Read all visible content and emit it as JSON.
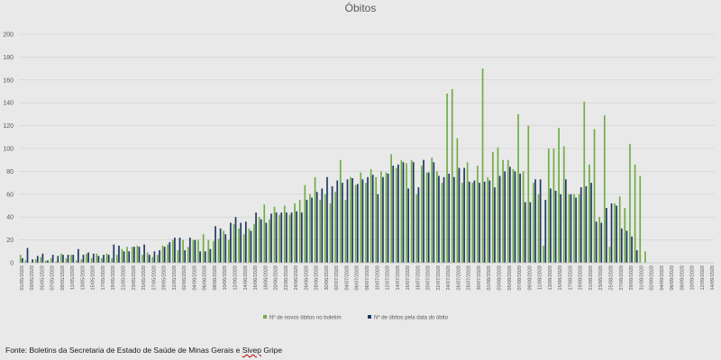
{
  "source": {
    "prefix": "Fonte: Boletins da Secretaria de Estado de Saúde de Minas Gerais e ",
    "underlined": "Sivep",
    "suffix": " Gripe"
  },
  "colors": {
    "background": "#e9e9e9",
    "grid": "#cfcfcf",
    "series_1": "#70ad47",
    "series_2": "#1f3864"
  },
  "chart_data": {
    "type": "bar",
    "title": "Óbitos",
    "ylim": [
      0,
      200
    ],
    "yticks": [
      0,
      20,
      40,
      60,
      80,
      100,
      120,
      140,
      160,
      180,
      200
    ],
    "grid": true,
    "legend_position": "bottom-right",
    "x_start": "01/05/2020",
    "x_end": "14/09/2020",
    "xtick_labels": [
      "01/05/2020",
      "03/05/2020",
      "05/05/2020",
      "07/05/2020",
      "09/05/2020",
      "11/05/2020",
      "13/05/2020",
      "15/05/2020",
      "17/05/2020",
      "19/05/2020",
      "21/05/2020",
      "23/05/2020",
      "25/05/2020",
      "27/05/2020",
      "29/05/2020",
      "31/05/2020",
      "02/06/2020",
      "04/06/2020",
      "06/06/2020",
      "08/06/2020",
      "10/06/2020",
      "12/06/2020",
      "14/06/2020",
      "16/06/2020",
      "18/06/2020",
      "20/06/2020",
      "22/06/2020",
      "24/06/2020",
      "26/06/2020",
      "28/06/2020",
      "30/06/2020",
      "02/07/2020",
      "04/07/2020",
      "06/07/2020",
      "08/07/2020",
      "10/07/2020",
      "12/07/2020",
      "14/07/2020",
      "16/07/2020",
      "18/07/2020",
      "20/07/2020",
      "22/07/2020",
      "24/07/2020",
      "26/07/2020",
      "28/07/2020",
      "30/07/2020",
      "01/08/2020",
      "03/08/2020",
      "05/08/2020",
      "07/08/2020",
      "09/08/2020",
      "11/08/2020",
      "13/08/2020",
      "15/08/2020",
      "17/08/2020",
      "19/08/2020",
      "21/08/2020",
      "23/08/2020",
      "25/08/2020",
      "27/08/2020",
      "29/08/2020",
      "31/08/2020",
      "02/09/2020",
      "04/09/2020",
      "06/09/2020",
      "08/09/2020",
      "10/09/2020",
      "12/09/2020",
      "14/09/2020"
    ],
    "series": [
      {
        "name": "Nº de novos óbitos no boletim",
        "values": [
          7,
          2,
          0,
          3,
          5,
          2,
          4,
          1,
          8,
          4,
          7,
          2,
          3,
          8,
          4,
          8,
          4,
          8,
          4,
          7,
          12,
          14,
          14,
          15,
          7,
          9,
          5,
          7,
          15,
          16,
          20,
          11,
          20,
          14,
          20,
          20,
          25,
          20,
          19,
          21,
          28,
          20,
          34,
          30,
          25,
          30,
          34,
          40,
          51,
          38,
          49,
          42,
          50,
          42,
          52,
          55,
          68,
          60,
          75,
          55,
          60,
          52,
          62,
          90,
          55,
          75,
          68,
          79,
          70,
          82,
          75,
          80,
          79,
          95,
          83,
          90,
          87,
          90,
          60,
          85,
          79,
          92,
          80,
          70,
          148,
          152,
          109,
          70,
          88,
          70,
          85,
          170,
          75,
          97,
          101,
          90,
          90,
          82,
          130,
          80,
          120,
          70,
          60,
          15,
          100,
          100,
          118,
          102,
          60,
          60,
          60,
          141,
          86,
          117,
          40,
          129,
          14,
          52,
          58,
          48,
          104,
          86,
          76,
          10
        ]
      },
      {
        "name": "Nº de óbitos pela data do óbito",
        "values": [
          4,
          13,
          3,
          6,
          8,
          2,
          7,
          6,
          7,
          7,
          7,
          12,
          7,
          9,
          8,
          6,
          7,
          7,
          16,
          15,
          10,
          10,
          14,
          14,
          16,
          7,
          10,
          11,
          14,
          18,
          22,
          22,
          11,
          22,
          20,
          10,
          10,
          12,
          32,
          30,
          25,
          35,
          40,
          35,
          36,
          28,
          44,
          38,
          35,
          43,
          44,
          44,
          44,
          44,
          45,
          44,
          55,
          57,
          62,
          65,
          75,
          67,
          72,
          70,
          73,
          74,
          69,
          73,
          75,
          77,
          60,
          75,
          78,
          85,
          86,
          88,
          65,
          88,
          66,
          90,
          79,
          88,
          76,
          75,
          78,
          75,
          83,
          83,
          71,
          72,
          70,
          71,
          72,
          66,
          76,
          80,
          84,
          80,
          78,
          53,
          53,
          73,
          73,
          55,
          65,
          63,
          60,
          73,
          60,
          57,
          66,
          67,
          70,
          36,
          35,
          48,
          52,
          50,
          30,
          28,
          23,
          11
        ]
      }
    ]
  }
}
